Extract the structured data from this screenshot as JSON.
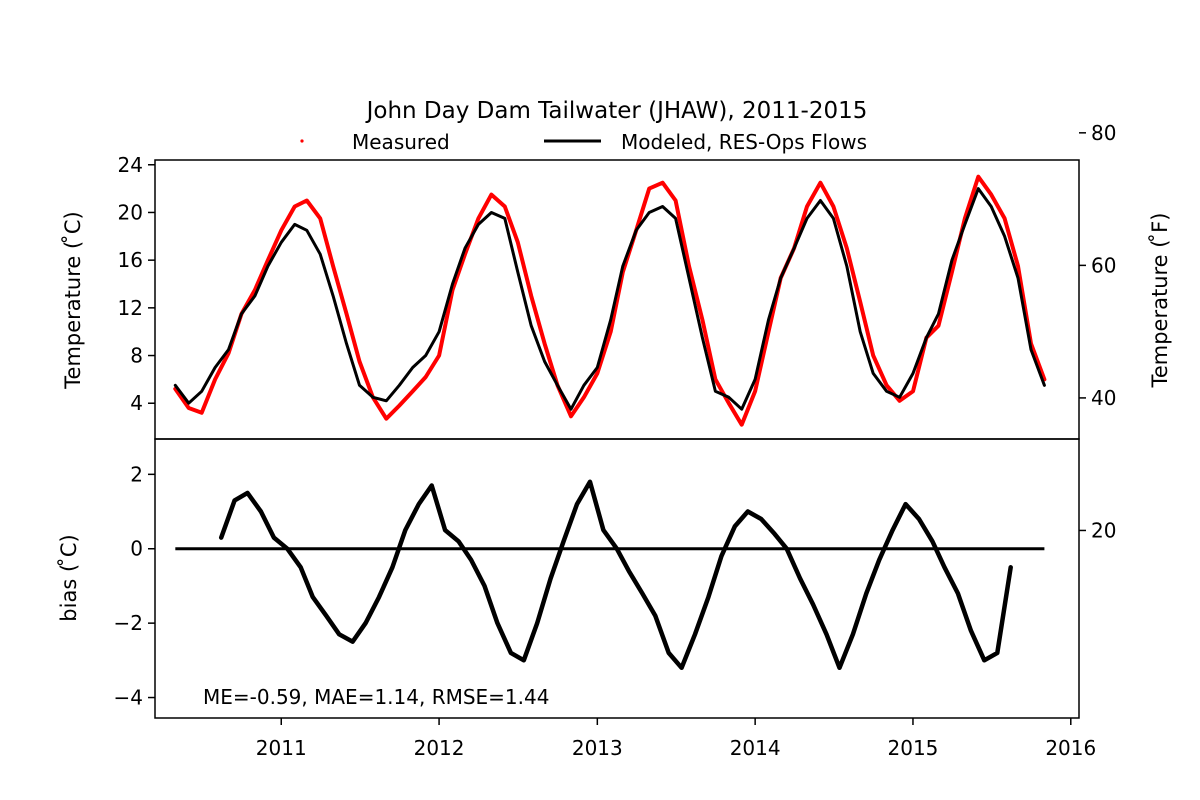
{
  "chart_data": {
    "type": "line",
    "title": "John Day Dam Tailwater (JHAW), 2011-2015",
    "legend": {
      "placement": "top-center",
      "entries": [
        "Measured",
        "Modeled, RES-Ops Flows"
      ]
    },
    "x_ticks": [
      "2011",
      "2012",
      "2013",
      "2014",
      "2015",
      "2016"
    ],
    "xlim": [
      "2010-03-15",
      "2016-01-20"
    ],
    "top_panel": {
      "ylabel": "Temperature ( ̊C)",
      "ylabel_right": "Temperature ( ̊F)",
      "ylim": [
        1.0,
        24.4
      ],
      "yticks": [
        "4",
        "8",
        "12",
        "16",
        "20",
        "24"
      ],
      "ylim_right_f": [
        33.8,
        75.9
      ],
      "yticks_right": [
        "20",
        "40",
        "60",
        "80"
      ],
      "series": [
        {
          "name": "Measured",
          "color": "#ff0000",
          "style": "points",
          "x": [
            "2010-05-01",
            "2010-06-01",
            "2010-07-01",
            "2010-08-01",
            "2010-09-01",
            "2010-10-01",
            "2010-11-01",
            "2010-12-01",
            "2011-01-01",
            "2011-02-01",
            "2011-03-01",
            "2011-04-01",
            "2011-05-01",
            "2011-06-01",
            "2011-07-01",
            "2011-08-01",
            "2011-09-01",
            "2011-10-01",
            "2011-11-01",
            "2011-12-01",
            "2012-01-01",
            "2012-02-01",
            "2012-03-01",
            "2012-04-01",
            "2012-05-01",
            "2012-06-01",
            "2012-07-01",
            "2012-08-01",
            "2012-09-01",
            "2012-10-01",
            "2012-11-01",
            "2012-12-01",
            "2013-01-01",
            "2013-02-01",
            "2013-03-01",
            "2013-04-01",
            "2013-05-01",
            "2013-06-01",
            "2013-07-01",
            "2013-08-01",
            "2013-09-01",
            "2013-10-01",
            "2013-11-01",
            "2013-12-01",
            "2014-01-01",
            "2014-02-01",
            "2014-03-01",
            "2014-04-01",
            "2014-05-01",
            "2014-06-01",
            "2014-07-01",
            "2014-08-01",
            "2014-09-01",
            "2014-10-01",
            "2014-11-01",
            "2014-12-01",
            "2015-01-01",
            "2015-02-01",
            "2015-03-01",
            "2015-04-01",
            "2015-05-01",
            "2015-06-01",
            "2015-07-01",
            "2015-08-01",
            "2015-09-01",
            "2015-10-01",
            "2015-11-01"
          ],
          "y": [
            5.2,
            3.6,
            3.2,
            6.0,
            8.2,
            11.5,
            13.5,
            16.0,
            18.5,
            20.5,
            21.0,
            19.5,
            15.5,
            11.5,
            7.5,
            4.5,
            2.7,
            3.8,
            5.0,
            6.2,
            8.0,
            13.5,
            16.5,
            19.5,
            21.5,
            20.5,
            17.5,
            13.0,
            9.0,
            5.5,
            2.9,
            4.5,
            6.5,
            10.0,
            15.0,
            18.5,
            22.0,
            22.5,
            21.0,
            15.5,
            11.0,
            6.0,
            4.0,
            2.2,
            5.0,
            10.0,
            14.5,
            17.0,
            20.5,
            22.5,
            20.5,
            17.0,
            12.5,
            8.0,
            5.5,
            4.2,
            5.0,
            9.5,
            10.5,
            15.0,
            19.5,
            23.0,
            21.5,
            19.5,
            15.5,
            9.0,
            6.0
          ]
        },
        {
          "name": "Modeled, RES-Ops Flows",
          "color": "#000000",
          "style": "line",
          "x": [
            "2010-05-01",
            "2010-06-01",
            "2010-07-01",
            "2010-08-01",
            "2010-09-01",
            "2010-10-01",
            "2010-11-01",
            "2010-12-01",
            "2011-01-01",
            "2011-02-01",
            "2011-03-01",
            "2011-04-01",
            "2011-05-01",
            "2011-06-01",
            "2011-07-01",
            "2011-08-01",
            "2011-09-01",
            "2011-10-01",
            "2011-11-01",
            "2011-12-01",
            "2012-01-01",
            "2012-02-01",
            "2012-03-01",
            "2012-04-01",
            "2012-05-01",
            "2012-06-01",
            "2012-07-01",
            "2012-08-01",
            "2012-09-01",
            "2012-10-01",
            "2012-11-01",
            "2012-12-01",
            "2013-01-01",
            "2013-02-01",
            "2013-03-01",
            "2013-04-01",
            "2013-05-01",
            "2013-06-01",
            "2013-07-01",
            "2013-08-01",
            "2013-09-01",
            "2013-10-01",
            "2013-11-01",
            "2013-12-01",
            "2014-01-01",
            "2014-02-01",
            "2014-03-01",
            "2014-04-01",
            "2014-05-01",
            "2014-06-01",
            "2014-07-01",
            "2014-08-01",
            "2014-09-01",
            "2014-10-01",
            "2014-11-01",
            "2014-12-01",
            "2015-01-01",
            "2015-02-01",
            "2015-03-01",
            "2015-04-01",
            "2015-05-01",
            "2015-06-01",
            "2015-07-01",
            "2015-08-01",
            "2015-09-01",
            "2015-10-01",
            "2015-11-01"
          ],
          "y": [
            5.5,
            4.0,
            5.0,
            7.0,
            8.5,
            11.5,
            13.0,
            15.5,
            17.5,
            19.0,
            18.5,
            16.5,
            13.0,
            9.0,
            5.5,
            4.5,
            4.2,
            5.5,
            7.0,
            8.0,
            10.0,
            14.0,
            17.0,
            19.0,
            20.0,
            19.5,
            15.0,
            10.5,
            7.5,
            5.5,
            3.5,
            5.5,
            7.0,
            11.0,
            15.5,
            18.5,
            20.0,
            20.5,
            19.5,
            14.5,
            9.5,
            5.0,
            4.5,
            3.5,
            6.0,
            11.0,
            14.5,
            17.0,
            19.5,
            21.0,
            19.5,
            15.5,
            10.0,
            6.5,
            5.0,
            4.5,
            6.5,
            9.5,
            11.5,
            16.0,
            19.0,
            22.0,
            20.5,
            18.0,
            14.5,
            8.5,
            5.5
          ]
        }
      ]
    },
    "bottom_panel": {
      "ylabel": "bias ( ̊C)",
      "ylim": [
        -4.55,
        2.95
      ],
      "yticks": [
        "−4",
        "−2",
        "0",
        "2"
      ],
      "zero_line": {
        "x_start": "2010-05-01",
        "x_end": "2015-11-01",
        "y": 0
      },
      "annotation": "ME=-0.59, MAE=1.14, RMSE=1.44",
      "series": [
        {
          "name": "bias",
          "color": "#000000",
          "style": "points",
          "x": [
            "2010-08-15",
            "2010-09-15",
            "2010-10-15",
            "2010-11-15",
            "2010-12-15",
            "2011-01-15",
            "2011-02-15",
            "2011-03-15",
            "2011-04-15",
            "2011-05-15",
            "2011-06-15",
            "2011-07-15",
            "2011-08-15",
            "2011-09-15",
            "2011-10-15",
            "2011-11-15",
            "2011-12-15",
            "2012-01-15",
            "2012-02-15",
            "2012-03-15",
            "2012-04-15",
            "2012-05-15",
            "2012-06-15",
            "2012-07-15",
            "2012-08-15",
            "2012-09-15",
            "2012-10-15",
            "2012-11-15",
            "2012-12-15",
            "2013-01-15",
            "2013-02-15",
            "2013-03-15",
            "2013-04-15",
            "2013-05-15",
            "2013-06-15",
            "2013-07-15",
            "2013-08-15",
            "2013-09-15",
            "2013-10-15",
            "2013-11-15",
            "2013-12-15",
            "2014-01-15",
            "2014-02-15",
            "2014-03-15",
            "2014-04-15",
            "2014-05-15",
            "2014-06-15",
            "2014-07-15",
            "2014-08-15",
            "2014-09-15",
            "2014-10-15",
            "2014-11-15",
            "2014-12-15",
            "2015-01-15",
            "2015-02-15",
            "2015-03-15",
            "2015-04-15",
            "2015-05-15",
            "2015-06-15",
            "2015-07-15",
            "2015-08-15"
          ],
          "y": [
            0.3,
            1.3,
            1.5,
            1.0,
            0.3,
            0.0,
            -0.5,
            -1.3,
            -1.8,
            -2.3,
            -2.5,
            -2.0,
            -1.3,
            -0.5,
            0.5,
            1.2,
            1.7,
            0.5,
            0.2,
            -0.3,
            -1.0,
            -2.0,
            -2.8,
            -3.0,
            -2.0,
            -0.8,
            0.2,
            1.2,
            1.8,
            0.5,
            0.0,
            -0.6,
            -1.2,
            -1.8,
            -2.8,
            -3.2,
            -2.3,
            -1.3,
            -0.2,
            0.6,
            1.0,
            0.8,
            0.4,
            0.0,
            -0.8,
            -1.5,
            -2.3,
            -3.2,
            -2.3,
            -1.2,
            -0.3,
            0.5,
            1.2,
            0.8,
            0.2,
            -0.5,
            -1.2,
            -2.2,
            -3.0,
            -2.8,
            -0.5
          ]
        }
      ]
    }
  }
}
